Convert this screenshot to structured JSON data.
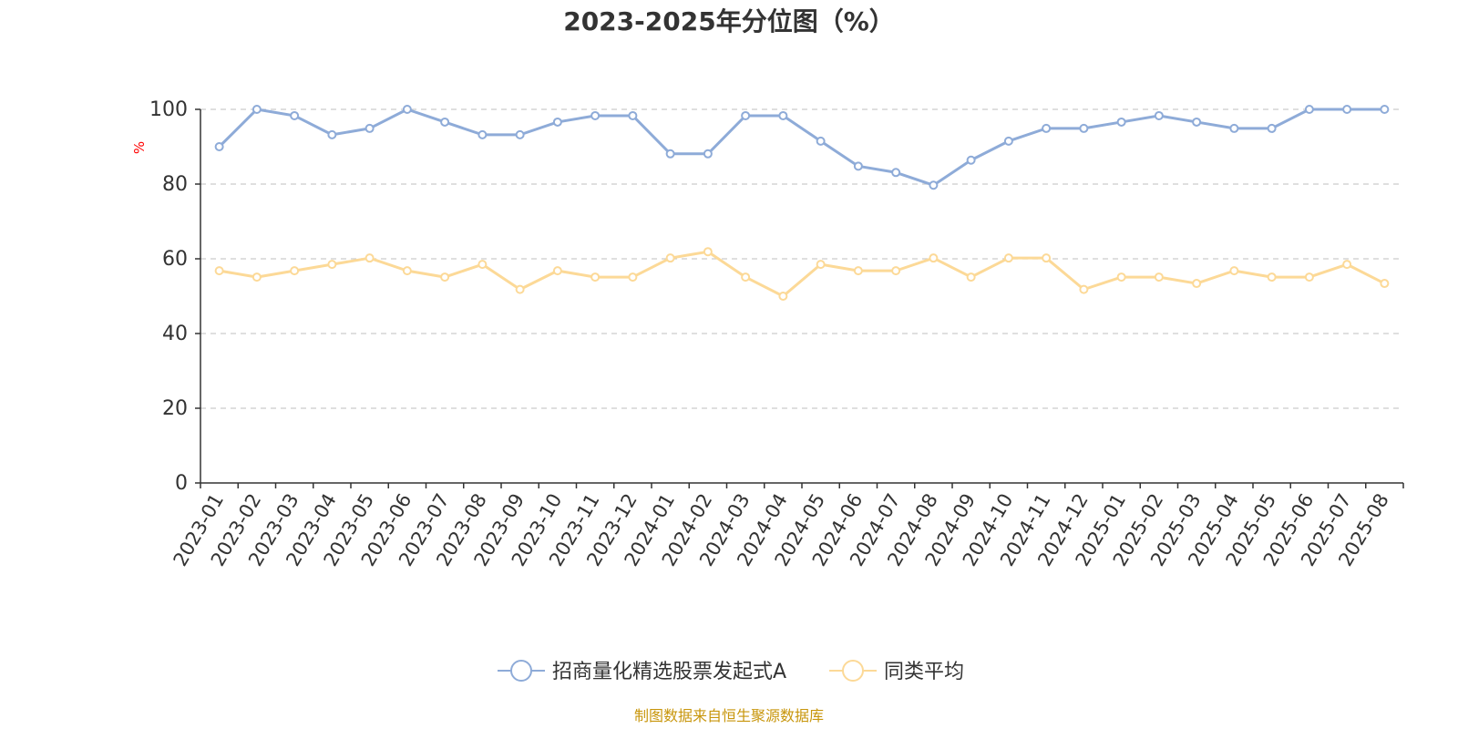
{
  "chart_data": {
    "type": "line",
    "title": "2023-2025年分位图（%）",
    "ylabel": "%",
    "ylim": [
      0,
      100
    ],
    "yticks": [
      0,
      20,
      40,
      60,
      80,
      100
    ],
    "grid": true,
    "legend_position": "bottom",
    "categories": [
      "2023-01",
      "2023-02",
      "2023-03",
      "2023-04",
      "2023-05",
      "2023-06",
      "2023-07",
      "2023-08",
      "2023-09",
      "2023-10",
      "2023-11",
      "2023-12",
      "2024-01",
      "2024-02",
      "2024-03",
      "2024-04",
      "2024-05",
      "2024-06",
      "2024-07",
      "2024-08",
      "2024-09",
      "2024-10",
      "2024-11",
      "2024-12",
      "2025-01",
      "2025-02",
      "2025-03",
      "2025-04",
      "2025-05",
      "2025-06",
      "2025-07",
      "2025-08"
    ],
    "series": [
      {
        "name": "招商量化精选股票发起式A",
        "color": "#8eabd8",
        "values": [
          90.0,
          100.0,
          98.3,
          93.2,
          94.9,
          100.0,
          96.6,
          93.2,
          93.2,
          96.6,
          98.3,
          98.3,
          88.1,
          88.1,
          98.3,
          98.3,
          91.5,
          84.8,
          83.1,
          79.7,
          86.4,
          91.5,
          94.9,
          94.9,
          96.6,
          98.3,
          96.6,
          94.9,
          94.9,
          100.0,
          100.0,
          100.0
        ]
      },
      {
        "name": "同类平均",
        "color": "#fcd997",
        "values": [
          56.8,
          55.1,
          56.8,
          58.5,
          60.2,
          56.8,
          55.1,
          58.5,
          51.8,
          56.8,
          55.1,
          55.1,
          60.2,
          61.9,
          55.1,
          50.0,
          58.5,
          56.8,
          56.8,
          60.2,
          55.1,
          60.2,
          60.2,
          51.8,
          55.1,
          55.1,
          53.4,
          56.8,
          55.1,
          55.1,
          58.5,
          53.4
        ]
      }
    ],
    "source": "制图数据来自恒生聚源数据库",
    "unit_color": "#ff0000",
    "source_color": "#c8960c",
    "grid_color": "#cccccc",
    "axis_color": "#333333"
  }
}
